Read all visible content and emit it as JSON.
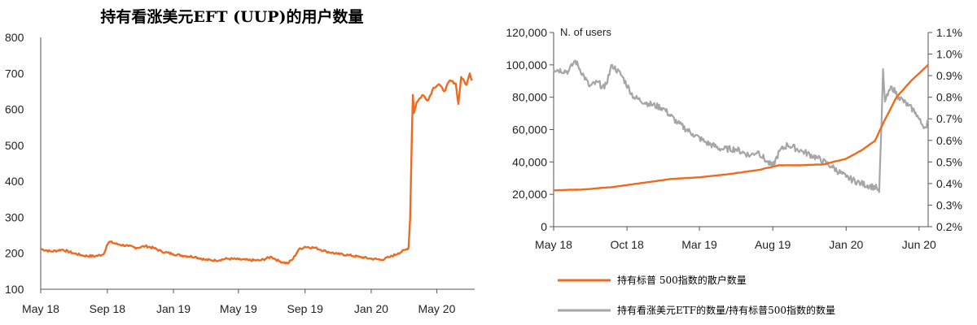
{
  "colors": {
    "orange": "#ee6a1f",
    "gray": "#a6a6a6",
    "axis": "#555555"
  },
  "chart_data": [
    {
      "type": "line",
      "title": "持有看涨美元EFT (UUP)的用户数量",
      "xlabel": "",
      "ylabel": "",
      "ylim": [
        100,
        800
      ],
      "yticks": [
        100,
        200,
        300,
        400,
        500,
        600,
        700,
        800
      ],
      "xlim": [
        "2018-05-01",
        "2020-07-10"
      ],
      "xticks": [
        {
          "date": "2018-05-01",
          "label": "May 18"
        },
        {
          "date": "2018-09-01",
          "label": "Sep 18"
        },
        {
          "date": "2019-01-01",
          "label": "Jan 19"
        },
        {
          "date": "2019-05-01",
          "label": "May 19"
        },
        {
          "date": "2019-09-01",
          "label": "Sep 19"
        },
        {
          "date": "2020-01-01",
          "label": "Jan 20"
        },
        {
          "date": "2020-05-01",
          "label": "May 20"
        }
      ],
      "grid": false,
      "series": [
        {
          "color": "#ee6a1f",
          "points": [
            [
              "2018-05-01",
              212
            ],
            [
              "2018-05-20",
              205
            ],
            [
              "2018-06-10",
              210
            ],
            [
              "2018-07-01",
              200
            ],
            [
              "2018-07-20",
              193
            ],
            [
              "2018-08-10",
              192
            ],
            [
              "2018-08-25",
              197
            ],
            [
              "2018-08-31",
              222
            ],
            [
              "2018-09-05",
              232
            ],
            [
              "2018-09-20",
              225
            ],
            [
              "2018-10-10",
              220
            ],
            [
              "2018-10-25",
              215
            ],
            [
              "2018-11-10",
              220
            ],
            [
              "2018-11-25",
              215
            ],
            [
              "2018-12-10",
              205
            ],
            [
              "2018-12-31",
              198
            ],
            [
              "2019-01-20",
              193
            ],
            [
              "2019-02-10",
              190
            ],
            [
              "2019-03-01",
              182
            ],
            [
              "2019-03-20",
              180
            ],
            [
              "2019-04-10",
              185
            ],
            [
              "2019-05-01",
              183
            ],
            [
              "2019-05-20",
              181
            ],
            [
              "2019-06-10",
              180
            ],
            [
              "2019-07-01",
              190
            ],
            [
              "2019-07-15",
              178
            ],
            [
              "2019-07-31",
              172
            ],
            [
              "2019-08-10",
              185
            ],
            [
              "2019-08-20",
              210
            ],
            [
              "2019-09-01",
              218
            ],
            [
              "2019-09-20",
              215
            ],
            [
              "2019-10-10",
              205
            ],
            [
              "2019-10-31",
              198
            ],
            [
              "2019-11-20",
              195
            ],
            [
              "2019-12-10",
              190
            ],
            [
              "2019-12-31",
              185
            ],
            [
              "2020-01-20",
              182
            ],
            [
              "2020-02-05",
              190
            ],
            [
              "2020-02-20",
              200
            ],
            [
              "2020-03-05",
              210
            ],
            [
              "2020-03-10",
              215
            ],
            [
              "2020-03-13",
              300
            ],
            [
              "2020-03-16",
              520
            ],
            [
              "2020-03-18",
              640
            ],
            [
              "2020-03-20",
              590
            ],
            [
              "2020-03-25",
              620
            ],
            [
              "2020-04-05",
              640
            ],
            [
              "2020-04-15",
              625
            ],
            [
              "2020-04-25",
              660
            ],
            [
              "2020-05-05",
              670
            ],
            [
              "2020-05-15",
              650
            ],
            [
              "2020-05-25",
              680
            ],
            [
              "2020-06-05",
              672
            ],
            [
              "2020-06-10",
              615
            ],
            [
              "2020-06-15",
              690
            ],
            [
              "2020-06-25",
              668
            ],
            [
              "2020-07-01",
              700
            ],
            [
              "2020-07-05",
              680
            ]
          ]
        }
      ]
    },
    {
      "type": "line",
      "title": "",
      "ylabel": "N. of users",
      "ylim": [
        0,
        120000
      ],
      "yticks": [
        0,
        20000,
        40000,
        60000,
        80000,
        100000,
        120000
      ],
      "yticklabels": [
        "0",
        "20,000",
        "40,000",
        "60,000",
        "80,000",
        "100,000",
        "120,000"
      ],
      "y2lim": [
        0.2,
        1.1
      ],
      "y2ticks": [
        "0.2%",
        "0.3%",
        "0.4%",
        "0.5%",
        "0.6%",
        "0.7%",
        "0.8%",
        "0.9%",
        "1.0%",
        "1.1%"
      ],
      "xlim": [
        "2018-05-01",
        "2020-06-20"
      ],
      "xticks": [
        {
          "date": "2018-05-01",
          "label": "May 18"
        },
        {
          "date": "2018-10-01",
          "label": "Oct 18"
        },
        {
          "date": "2019-03-01",
          "label": "Mar 19"
        },
        {
          "date": "2019-08-01",
          "label": "Aug 19"
        },
        {
          "date": "2020-01-01",
          "label": "Jan 20"
        },
        {
          "date": "2020-06-01",
          "label": "Jun 20"
        }
      ],
      "grid": false,
      "legend_position": "bottom",
      "series": [
        {
          "name": "持有标普 500指数的散户数量",
          "axis": "left",
          "color": "#ee6a1f",
          "points": [
            [
              "2018-05-01",
              22500
            ],
            [
              "2018-07-01",
              23000
            ],
            [
              "2018-09-01",
              24500
            ],
            [
              "2018-11-01",
              27000
            ],
            [
              "2019-01-01",
              29500
            ],
            [
              "2019-03-01",
              30500
            ],
            [
              "2019-05-01",
              32500
            ],
            [
              "2019-07-01",
              35000
            ],
            [
              "2019-08-15",
              38000
            ],
            [
              "2019-10-01",
              38000
            ],
            [
              "2019-11-15",
              38500
            ],
            [
              "2020-01-01",
              42000
            ],
            [
              "2020-02-01",
              47000
            ],
            [
              "2020-03-01",
              53000
            ],
            [
              "2020-03-20",
              65000
            ],
            [
              "2020-04-15",
              80000
            ],
            [
              "2020-05-15",
              90000
            ],
            [
              "2020-06-20",
              100000
            ]
          ]
        },
        {
          "name": "持有看涨美元ETF的数量/持有标普500指数的数量",
          "axis": "right",
          "color": "#a6a6a6",
          "points": [
            [
              "2018-05-01",
              0.93
            ],
            [
              "2018-06-01",
              0.92
            ],
            [
              "2018-06-15",
              0.97
            ],
            [
              "2018-07-15",
              0.85
            ],
            [
              "2018-08-01",
              0.87
            ],
            [
              "2018-08-15",
              0.84
            ],
            [
              "2018-08-31",
              0.95
            ],
            [
              "2018-09-20",
              0.9
            ],
            [
              "2018-10-15",
              0.8
            ],
            [
              "2018-11-15",
              0.77
            ],
            [
              "2018-12-15",
              0.75
            ],
            [
              "2019-01-15",
              0.68
            ],
            [
              "2019-02-15",
              0.63
            ],
            [
              "2019-03-15",
              0.59
            ],
            [
              "2019-04-15",
              0.56
            ],
            [
              "2019-05-15",
              0.56
            ],
            [
              "2019-06-15",
              0.53
            ],
            [
              "2019-07-01",
              0.55
            ],
            [
              "2019-07-20",
              0.5
            ],
            [
              "2019-08-01",
              0.48
            ],
            [
              "2019-08-15",
              0.55
            ],
            [
              "2019-09-01",
              0.58
            ],
            [
              "2019-10-01",
              0.55
            ],
            [
              "2019-11-01",
              0.52
            ],
            [
              "2019-12-01",
              0.48
            ],
            [
              "2020-01-01",
              0.43
            ],
            [
              "2020-02-01",
              0.4
            ],
            [
              "2020-03-05",
              0.38
            ],
            [
              "2020-03-10",
              0.36
            ],
            [
              "2020-03-15",
              0.7
            ],
            [
              "2020-03-18",
              0.93
            ],
            [
              "2020-03-22",
              0.78
            ],
            [
              "2020-04-05",
              0.85
            ],
            [
              "2020-04-20",
              0.8
            ],
            [
              "2020-05-10",
              0.76
            ],
            [
              "2020-05-25",
              0.73
            ],
            [
              "2020-06-05",
              0.68
            ],
            [
              "2020-06-15",
              0.66
            ],
            [
              "2020-06-20",
              0.7
            ]
          ]
        }
      ]
    }
  ]
}
